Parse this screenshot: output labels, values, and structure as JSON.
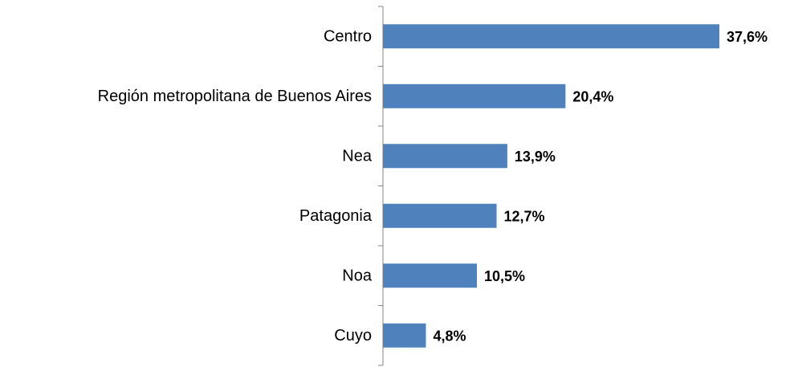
{
  "chart_data": {
    "type": "bar",
    "orientation": "horizontal",
    "categories": [
      "Centro",
      "Región metropolitana de Buenos Aires",
      "Nea",
      "Patagonia",
      "Noa",
      "Cuyo"
    ],
    "values": [
      37.6,
      20.4,
      13.9,
      12.7,
      10.5,
      4.8
    ],
    "value_labels": [
      "37,6%",
      "20,4%",
      "13,9%",
      "12,7%",
      "10,5%",
      "4,8%"
    ],
    "color": "#4f81bd"
  }
}
